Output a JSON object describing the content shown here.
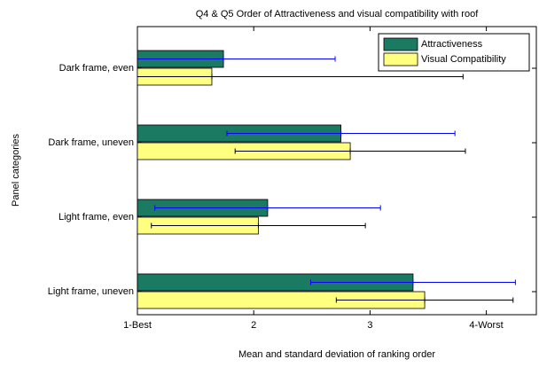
{
  "chart_data": {
    "type": "barh",
    "title": "Q4 & Q5 Order of Attractiveness and visual compatibility with roof",
    "xlabel": "Mean and standard deviation of ranking order",
    "ylabel": "Panel categories",
    "categories": [
      "Dark frame, even",
      "Dark frame, uneven",
      "Light frame, even",
      "Light frame, uneven"
    ],
    "series": [
      {
        "name": "Attractiveness",
        "color": "#1a7a62",
        "error_color": "#0000ff",
        "values": [
          1.74,
          2.75,
          2.12,
          3.37
        ],
        "errors": [
          0.96,
          0.98,
          0.97,
          0.88
        ]
      },
      {
        "name": "Visual Compatibility",
        "color": "#ffff80",
        "error_color": "#000000",
        "values": [
          1.64,
          2.83,
          2.04,
          3.47
        ],
        "errors": [
          2.16,
          0.99,
          0.92,
          0.76
        ]
      }
    ],
    "xlim": [
      1,
      4.43
    ],
    "xticks": [
      {
        "value": 1,
        "label": "1-Best"
      },
      2,
      3,
      {
        "value": 4,
        "label": "4-Worst"
      }
    ],
    "legend": "northeast"
  }
}
